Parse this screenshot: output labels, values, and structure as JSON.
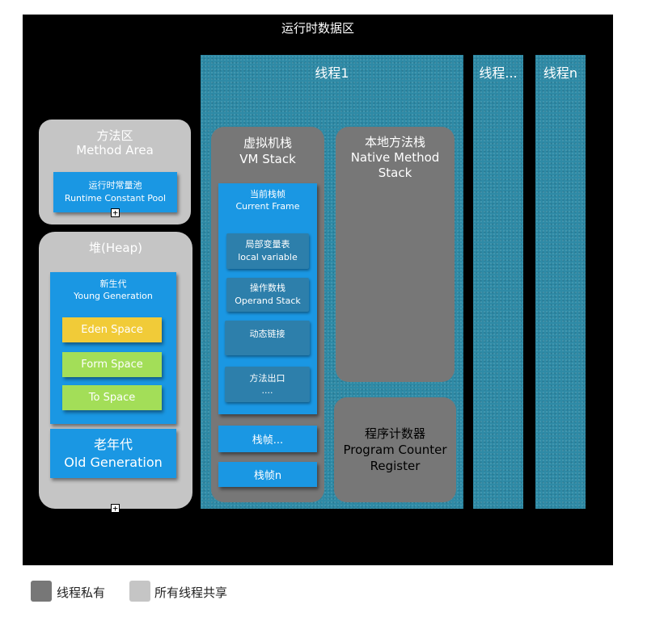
{
  "title": "运行时数据区",
  "threads": [
    {
      "label": "线程1"
    },
    {
      "label": "线程..."
    },
    {
      "label": "线程n"
    }
  ],
  "method_area": {
    "zh": "方法区",
    "en": "Method Area",
    "constant_pool": {
      "zh": "运行时常量池",
      "en": "Runtime Constant Pool"
    }
  },
  "heap": {
    "title": "堆(Heap)",
    "young": {
      "zh": "新生代",
      "en": "Young Generation"
    },
    "eden": "Eden Space",
    "from": "Form Space",
    "to": "To Space",
    "old": {
      "zh": "老年代",
      "en": "Old Generation"
    }
  },
  "vm_stack": {
    "zh": "虚拟机栈",
    "en": "VM Stack",
    "current_frame": {
      "zh": "当前栈帧",
      "en": "Current Frame"
    },
    "local_variable": {
      "zh": "局部变量表",
      "en": "local variable"
    },
    "operand_stack": {
      "zh": "操作数栈",
      "en": "Operand Stack"
    },
    "dynamic_link": "动态链接",
    "return_address": {
      "zh": "方法出口",
      "en": "...."
    },
    "frame_more": "栈帧...",
    "frame_n": "栈帧n"
  },
  "native_stack": {
    "zh": "本地方法栈",
    "en1": "Native Method",
    "en2": "Stack"
  },
  "pc_register": {
    "zh": "程序计数器",
    "en1": "Program Counter",
    "en2": "Register"
  },
  "legend": [
    {
      "label": "线程私有",
      "color": "#777777"
    },
    {
      "label": "所有线程共享",
      "color": "#c5c5c5"
    }
  ],
  "expand_icon_glyph": "+"
}
